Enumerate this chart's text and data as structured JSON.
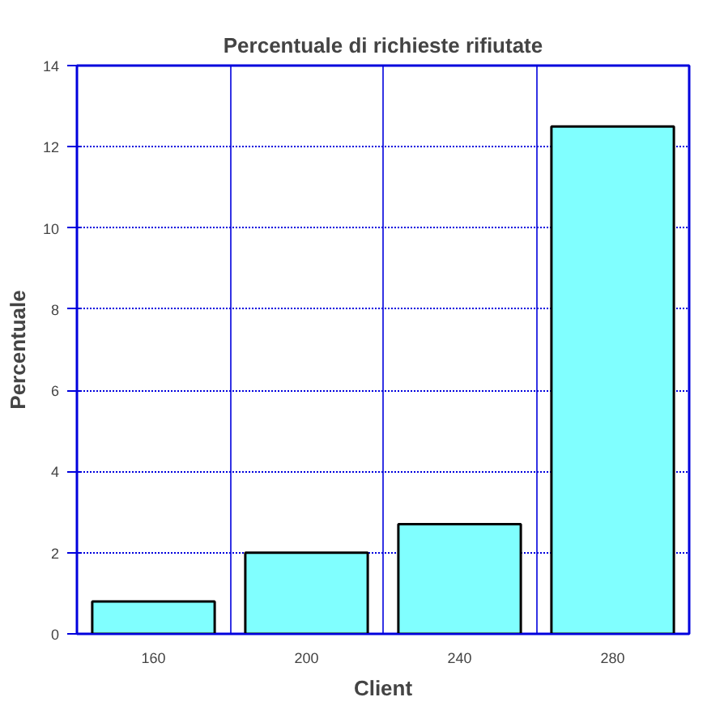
{
  "chart_data": {
    "type": "bar",
    "title": "Percentuale di richieste rifiutate",
    "xlabel": "Client",
    "ylabel": "Percentuale",
    "categories": [
      "160",
      "200",
      "240",
      "280"
    ],
    "values": [
      0.8,
      2.0,
      2.7,
      12.5
    ],
    "color": "#80ffff",
    "ylim": [
      0,
      14
    ],
    "yticks": [
      0,
      2,
      4,
      6,
      8,
      10,
      12,
      14
    ],
    "grid": true
  }
}
